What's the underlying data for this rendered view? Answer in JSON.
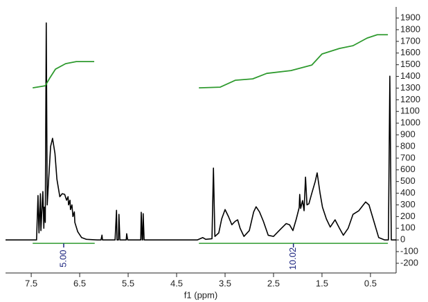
{
  "chart_data": {
    "type": "line",
    "xlabel": "f1 (ppm)",
    "xreversed": true,
    "xlim": [
      8.03,
      -0.03
    ],
    "xticks": [
      7.5,
      6.5,
      5.5,
      4.5,
      3.5,
      2.5,
      1.5,
      0.5
    ],
    "ylim": [
      -283,
      1995
    ],
    "yticks": [
      -200,
      -100,
      0,
      100,
      200,
      300,
      400,
      500,
      600,
      700,
      800,
      900,
      1000,
      1100,
      1200,
      1300,
      1400,
      1500,
      1600,
      1700,
      1800,
      1900
    ],
    "series": [
      {
        "color": "#000000",
        "x": [
          8.03,
          7.5,
          7.39,
          7.36,
          7.34,
          7.31,
          7.3,
          7.26,
          7.24,
          7.23,
          7.21,
          7.19,
          7.17,
          7.14,
          7.1,
          7.06,
          7.01,
          6.97,
          6.91,
          6.86,
          6.81,
          6.77,
          6.74,
          6.73,
          6.7,
          6.69,
          6.66,
          6.64,
          6.61,
          6.6,
          6.54,
          6.46,
          6.36,
          6.14,
          6.06,
          6.04,
          6.03,
          5.77,
          5.74,
          5.73,
          5.7,
          5.69,
          5.67,
          5.54,
          5.53,
          5.51,
          5.24,
          5.23,
          5.21,
          5.2,
          5.19,
          5.17,
          4.07,
          3.96,
          3.9,
          3.77,
          3.74,
          3.71,
          3.63,
          3.57,
          3.5,
          3.43,
          3.36,
          3.29,
          3.24,
          3.19,
          3.11,
          3.0,
          2.91,
          2.86,
          2.79,
          2.71,
          2.61,
          2.5,
          2.36,
          2.24,
          2.17,
          2.1,
          2.03,
          1.97,
          1.96,
          1.94,
          1.9,
          1.87,
          1.84,
          1.81,
          1.77,
          1.71,
          1.64,
          1.6,
          1.54,
          1.49,
          1.41,
          1.33,
          1.23,
          1.14,
          1.06,
          0.96,
          0.86,
          0.74,
          0.6,
          0.53,
          0.43,
          0.33,
          0.21,
          0.13,
          0.1,
          0.07,
          -0.03
        ],
        "values": [
          0,
          0,
          0,
          380,
          60,
          396,
          80,
          414,
          100,
          280,
          150,
          1858,
          300,
          520,
          800,
          870,
          740,
          520,
          370,
          396,
          390,
          340,
          370,
          300,
          340,
          260,
          300,
          200,
          240,
          150,
          70,
          20,
          5,
          0,
          0,
          41,
          0,
          0,
          254,
          0,
          0,
          219,
          0,
          0,
          53,
          0,
          0,
          237,
          0,
          0,
          225,
          0,
          0,
          20,
          5,
          10,
          615,
          30,
          60,
          180,
          260,
          200,
          130,
          160,
          172,
          100,
          30,
          80,
          240,
          284,
          240,
          160,
          40,
          30,
          90,
          140,
          130,
          80,
          180,
          278,
          390,
          270,
          337,
          250,
          538,
          300,
          310,
          400,
          500,
          574,
          400,
          280,
          180,
          110,
          172,
          100,
          40,
          100,
          219,
          250,
          325,
          300,
          160,
          20,
          0,
          0,
          1402,
          0,
          0
        ]
      },
      {
        "color": "#2e9a2e",
        "x": [
          7.47,
          7.21,
          7.11,
          7.0,
          6.79,
          6.57,
          6.2
        ],
        "values": [
          1302,
          1320,
          1391,
          1462,
          1509,
          1527,
          1527
        ]
      },
      {
        "color": "#2e9a2e",
        "x": [
          4.04,
          3.6,
          3.29,
          2.93,
          2.64,
          2.14,
          1.71,
          1.5,
          1.14,
          0.86,
          0.57,
          0.36,
          0.14
        ],
        "values": [
          1302,
          1308,
          1367,
          1379,
          1426,
          1450,
          1497,
          1592,
          1639,
          1663,
          1728,
          1757,
          1757
        ]
      }
    ],
    "integrals": [
      {
        "from": 7.47,
        "to": 6.19,
        "label": "5.00"
      },
      {
        "from": 4.04,
        "to": 0.14,
        "label": "10.02"
      }
    ]
  }
}
